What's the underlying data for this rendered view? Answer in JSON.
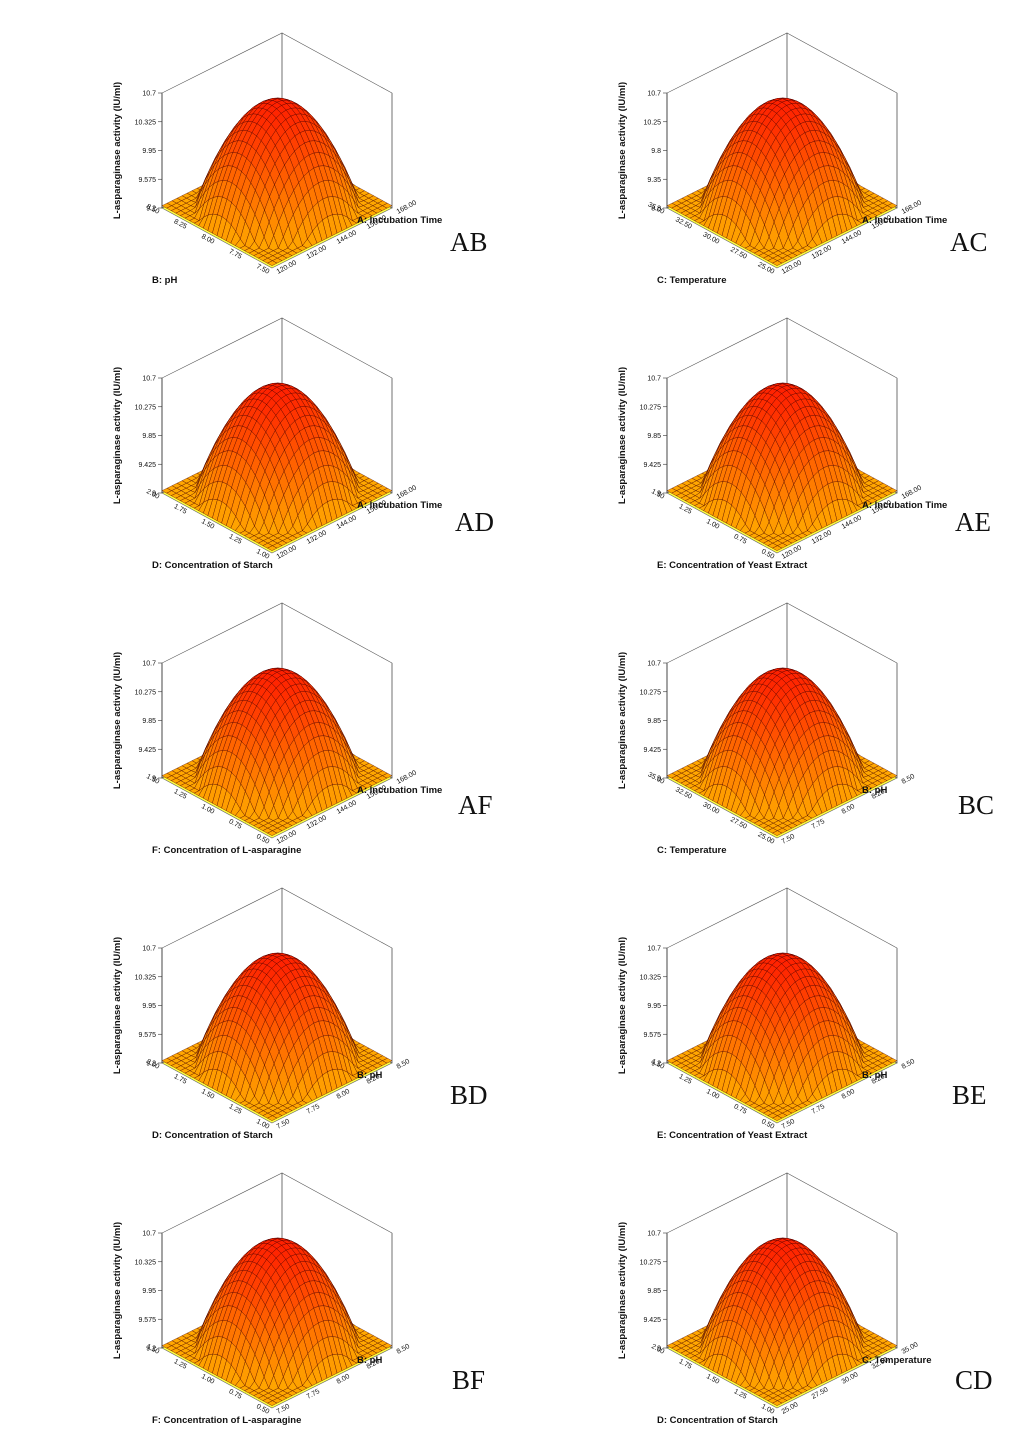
{
  "chart_data": [
    {
      "type": "surface",
      "panel_label": "AB",
      "zlabel": "L-asparaginase activity (IU/ml)",
      "z_ticks": [
        "9.2",
        "9.575",
        "9.95",
        "10.325",
        "10.7"
      ],
      "x_axis": {
        "label": "A: Incubation Time",
        "ticks": [
          "120.00",
          "132.00",
          "144.00",
          "156.00",
          "168.00"
        ]
      },
      "y_axis": {
        "label": "B: pH",
        "ticks": [
          "7.50",
          "7.75",
          "8.00",
          "8.25",
          "8.50"
        ]
      },
      "zlim": [
        9.2,
        10.7
      ]
    },
    {
      "type": "surface",
      "panel_label": "AC",
      "zlabel": "L-asparaginase activity (IU/ml)",
      "z_ticks": [
        "8.8",
        "9.35",
        "9.8",
        "10.25",
        "10.7"
      ],
      "x_axis": {
        "label": "A: Incubation Time",
        "ticks": [
          "120.00",
          "132.00",
          "144.00",
          "156.00",
          "168.00"
        ]
      },
      "y_axis": {
        "label": "C: Temperature",
        "ticks": [
          "25.00",
          "27.50",
          "30.00",
          "32.50",
          "35.00"
        ]
      },
      "zlim": [
        8.8,
        10.7
      ]
    },
    {
      "type": "surface",
      "panel_label": "AD",
      "zlabel": "L-asparaginase activity (IU/ml)",
      "z_ticks": [
        "9",
        "9.425",
        "9.85",
        "10.275",
        "10.7"
      ],
      "x_axis": {
        "label": "A: Incubation Time",
        "ticks": [
          "120.00",
          "132.00",
          "144.00",
          "156.00",
          "168.00"
        ]
      },
      "y_axis": {
        "label": "D: Concentration of Starch",
        "ticks": [
          "1.00",
          "1.25",
          "1.50",
          "1.75",
          "2.00"
        ]
      },
      "zlim": [
        9,
        10.7
      ]
    },
    {
      "type": "surface",
      "panel_label": "AE",
      "zlabel": "L-asparaginase activity (IU/ml)",
      "z_ticks": [
        "9",
        "9.425",
        "9.85",
        "10.275",
        "10.7"
      ],
      "x_axis": {
        "label": "A: Incubation Time",
        "ticks": [
          "120.00",
          "132.00",
          "144.00",
          "156.00",
          "168.00"
        ]
      },
      "y_axis": {
        "label": "E: Concentration of Yeast Extract",
        "ticks": [
          "0.50",
          "0.75",
          "1.00",
          "1.25",
          "1.50"
        ]
      },
      "zlim": [
        9,
        10.7
      ]
    },
    {
      "type": "surface",
      "panel_label": "AF",
      "zlabel": "L-asparaginase activity (IU/ml)",
      "z_ticks": [
        "9",
        "9.425",
        "9.85",
        "10.275",
        "10.7"
      ],
      "x_axis": {
        "label": "A: Incubation Time",
        "ticks": [
          "120.00",
          "132.00",
          "144.00",
          "156.00",
          "168.00"
        ]
      },
      "y_axis": {
        "label": "F: Concentration of L-asparagine",
        "ticks": [
          "0.50",
          "0.75",
          "1.00",
          "1.25",
          "1.50"
        ]
      },
      "zlim": [
        9,
        10.7
      ]
    },
    {
      "type": "surface",
      "panel_label": "BC",
      "zlabel": "L-asparaginase activity (IU/ml)",
      "z_ticks": [
        "9",
        "9.425",
        "9.85",
        "10.275",
        "10.7"
      ],
      "x_axis": {
        "label": "B: pH",
        "ticks": [
          "7.50",
          "7.75",
          "8.00",
          "8.25",
          "8.50"
        ]
      },
      "y_axis": {
        "label": "C: Temperature",
        "ticks": [
          "25.00",
          "27.50",
          "30.00",
          "32.50",
          "35.00"
        ]
      },
      "zlim": [
        9,
        10.7
      ]
    },
    {
      "type": "surface",
      "panel_label": "BD",
      "zlabel": "L-asparaginase activity (IU/ml)",
      "z_ticks": [
        "9.2",
        "9.575",
        "9.95",
        "10.325",
        "10.7"
      ],
      "x_axis": {
        "label": "B: pH",
        "ticks": [
          "7.50",
          "7.75",
          "8.00",
          "8.25",
          "8.50"
        ]
      },
      "y_axis": {
        "label": "D: Concentration of Starch",
        "ticks": [
          "1.00",
          "1.25",
          "1.50",
          "1.75",
          "2.00"
        ]
      },
      "zlim": [
        9.2,
        10.7
      ]
    },
    {
      "type": "surface",
      "panel_label": "BE",
      "zlabel": "L-asparaginase activity (IU/ml)",
      "z_ticks": [
        "9.2",
        "9.575",
        "9.95",
        "10.325",
        "10.7"
      ],
      "x_axis": {
        "label": "B: pH",
        "ticks": [
          "7.50",
          "7.75",
          "8.00",
          "8.25",
          "8.50"
        ]
      },
      "y_axis": {
        "label": "E: Concentration of Yeast Extract",
        "ticks": [
          "0.50",
          "0.75",
          "1.00",
          "1.25",
          "1.50"
        ]
      },
      "zlim": [
        9.2,
        10.7
      ]
    },
    {
      "type": "surface",
      "panel_label": "BF",
      "zlabel": "L-asparaginase activity (IU/ml)",
      "z_ticks": [
        "9.2",
        "9.575",
        "9.95",
        "10.325",
        "10.7"
      ],
      "x_axis": {
        "label": "B: pH",
        "ticks": [
          "7.50",
          "7.75",
          "8.00",
          "8.25",
          "8.50"
        ]
      },
      "y_axis": {
        "label": "F: Concentration of L-asparagine",
        "ticks": [
          "0.50",
          "0.75",
          "1.00",
          "1.25",
          "1.50"
        ]
      },
      "zlim": [
        9.2,
        10.7
      ]
    },
    {
      "type": "surface",
      "panel_label": "CD",
      "zlabel": "L-asparaginase activity (IU/ml)",
      "z_ticks": [
        "9",
        "9.425",
        "9.85",
        "10.275",
        "10.7"
      ],
      "x_axis": {
        "label": "C: Temperature",
        "ticks": [
          "25.00",
          "27.50",
          "30.00",
          "32.50",
          "35.00"
        ]
      },
      "y_axis": {
        "label": "D: Concentration of Starch",
        "ticks": [
          "1.00",
          "1.25",
          "1.50",
          "1.75",
          "2.00"
        ]
      },
      "zlim": [
        9,
        10.7
      ]
    }
  ]
}
